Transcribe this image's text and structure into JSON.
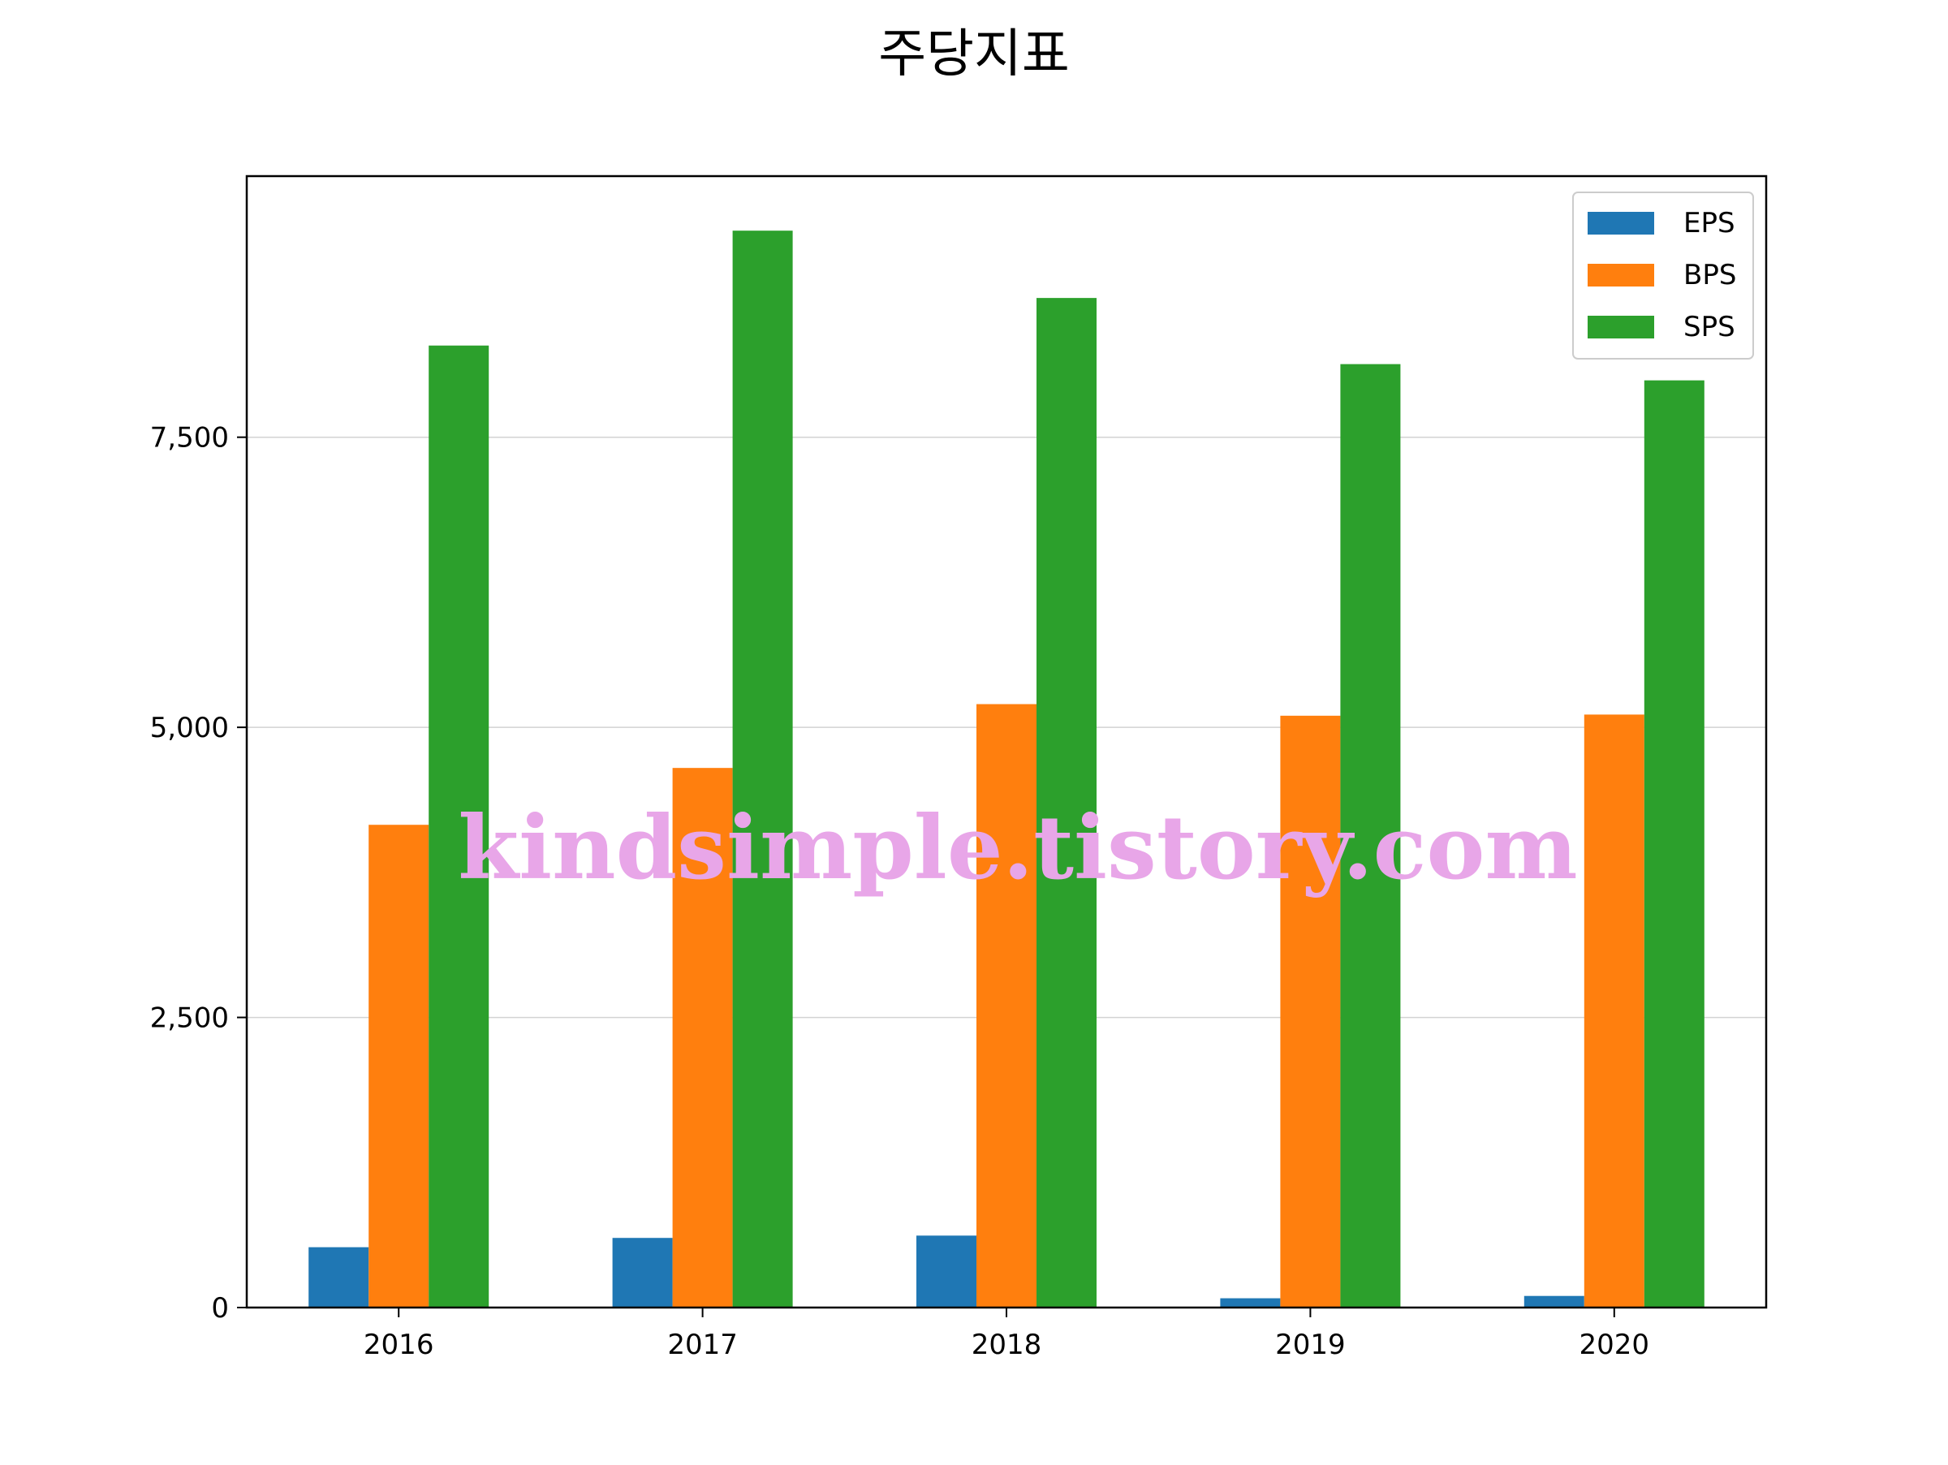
{
  "chart_data": {
    "type": "bar",
    "title": "주당지표",
    "xlabel": "",
    "ylabel": "",
    "categories": [
      "2016",
      "2017",
      "2018",
      "2019",
      "2020"
    ],
    "series": [
      {
        "name": "EPS",
        "color": "#1f77b4",
        "values": [
          520,
          600,
          620,
          80,
          100
        ]
      },
      {
        "name": "BPS",
        "color": "#ff7f0e",
        "values": [
          4160,
          4650,
          5200,
          5100,
          5110
        ]
      },
      {
        "name": "SPS",
        "color": "#2ca02c",
        "values": [
          8290,
          9280,
          8700,
          8130,
          7990
        ]
      }
    ],
    "ylim": [
      0,
      9750
    ],
    "yticks": [
      0,
      2500,
      5000,
      7500
    ],
    "ytick_labels": [
      "0",
      "2,500",
      "5,000",
      "7,500"
    ],
    "grid": "horizontal",
    "legend": "top-right",
    "watermark": "kindsimple.tistory.com"
  }
}
